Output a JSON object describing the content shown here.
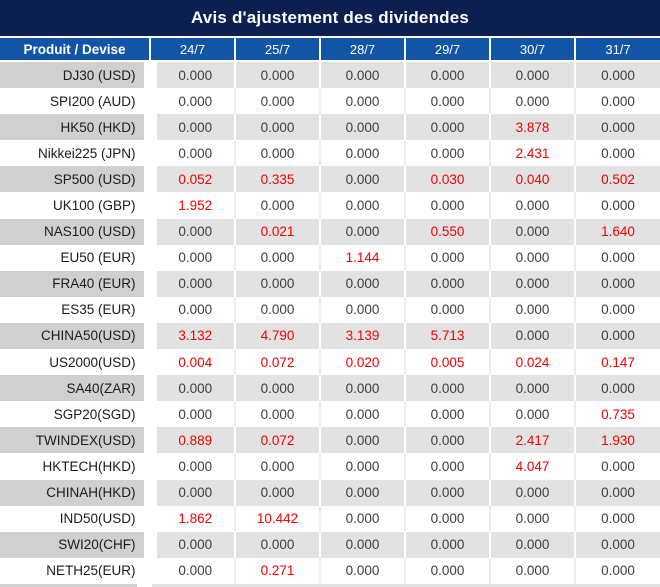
{
  "title": "Avis d'ajustement des dividendes",
  "colors": {
    "title_bar_bg": "#0c1f4f",
    "header_bg": "#1254a5",
    "header_text": "#ffffff",
    "row_gray_product": "#d0d0d0",
    "row_gray_value": "#e2e2e2",
    "row_white": "#ffffff",
    "value_text": "#3d3d3d",
    "red_value_text": "#f10000"
  },
  "table": {
    "product_header": "Produit / Devise",
    "date_headers": [
      "24/7",
      "25/7",
      "28/7",
      "29/7",
      "30/7",
      "31/7"
    ],
    "rows": [
      {
        "product": "DJ30 (USD)",
        "values": [
          "0.000",
          "0.000",
          "0.000",
          "0.000",
          "0.000",
          "0.000"
        ],
        "red": [
          false,
          false,
          false,
          false,
          false,
          false
        ]
      },
      {
        "product": "SPI200 (AUD)",
        "values": [
          "0.000",
          "0.000",
          "0.000",
          "0.000",
          "0.000",
          "0.000"
        ],
        "red": [
          false,
          false,
          false,
          false,
          false,
          false
        ]
      },
      {
        "product": "HK50 (HKD)",
        "values": [
          "0.000",
          "0.000",
          "0.000",
          "0.000",
          "3.878",
          "0.000"
        ],
        "red": [
          false,
          false,
          false,
          false,
          true,
          false
        ]
      },
      {
        "product": "Nikkei225 (JPN)",
        "values": [
          "0.000",
          "0.000",
          "0.000",
          "0.000",
          "2.431",
          "0.000"
        ],
        "red": [
          false,
          false,
          false,
          false,
          true,
          false
        ]
      },
      {
        "product": "SP500 (USD)",
        "values": [
          "0.052",
          "0.335",
          "0.000",
          "0.030",
          "0.040",
          "0.502"
        ],
        "red": [
          true,
          true,
          false,
          true,
          true,
          true
        ]
      },
      {
        "product": "UK100 (GBP)",
        "values": [
          "1.952",
          "0.000",
          "0.000",
          "0.000",
          "0.000",
          "0.000"
        ],
        "red": [
          true,
          false,
          false,
          false,
          false,
          false
        ]
      },
      {
        "product": "NAS100 (USD)",
        "values": [
          "0.000",
          "0.021",
          "0.000",
          "0.550",
          "0.000",
          "1.640"
        ],
        "red": [
          false,
          true,
          false,
          true,
          false,
          true
        ]
      },
      {
        "product": "EU50 (EUR)",
        "values": [
          "0.000",
          "0.000",
          "1.144",
          "0.000",
          "0.000",
          "0.000"
        ],
        "red": [
          false,
          false,
          true,
          false,
          false,
          false
        ]
      },
      {
        "product": "FRA40 (EUR)",
        "values": [
          "0.000",
          "0.000",
          "0.000",
          "0.000",
          "0.000",
          "0.000"
        ],
        "red": [
          false,
          false,
          false,
          false,
          false,
          false
        ]
      },
      {
        "product": "ES35 (EUR)",
        "values": [
          "0.000",
          "0.000",
          "0.000",
          "0.000",
          "0.000",
          "0.000"
        ],
        "red": [
          false,
          false,
          false,
          false,
          false,
          false
        ]
      },
      {
        "product": "CHINA50(USD)",
        "values": [
          "3.132",
          "4.790",
          "3.139",
          "5.713",
          "0.000",
          "0.000"
        ],
        "red": [
          true,
          true,
          true,
          true,
          false,
          false
        ]
      },
      {
        "product": "US2000(USD)",
        "values": [
          "0.004",
          "0.072",
          "0.020",
          "0.005",
          "0.024",
          "0.147"
        ],
        "red": [
          true,
          true,
          true,
          true,
          true,
          true
        ]
      },
      {
        "product": "SA40(ZAR)",
        "values": [
          "0.000",
          "0.000",
          "0.000",
          "0.000",
          "0.000",
          "0.000"
        ],
        "red": [
          false,
          false,
          false,
          false,
          false,
          false
        ]
      },
      {
        "product": "SGP20(SGD)",
        "values": [
          "0.000",
          "0.000",
          "0.000",
          "0.000",
          "0.000",
          "0.735"
        ],
        "red": [
          false,
          false,
          false,
          false,
          false,
          true
        ]
      },
      {
        "product": "TWINDEX(USD)",
        "values": [
          "0.889",
          "0.072",
          "0.000",
          "0.000",
          "2.417",
          "1.930"
        ],
        "red": [
          true,
          true,
          false,
          false,
          true,
          true
        ]
      },
      {
        "product": "HKTECH(HKD)",
        "values": [
          "0.000",
          "0.000",
          "0.000",
          "0.000",
          "4.047",
          "0.000"
        ],
        "red": [
          false,
          false,
          false,
          false,
          true,
          false
        ]
      },
      {
        "product": "CHINAH(HKD)",
        "values": [
          "0.000",
          "0.000",
          "0.000",
          "0.000",
          "0.000",
          "0.000"
        ],
        "red": [
          false,
          false,
          false,
          false,
          false,
          false
        ]
      },
      {
        "product": "IND50(USD)",
        "values": [
          "1.862",
          "10.442",
          "0.000",
          "0.000",
          "0.000",
          "0.000"
        ],
        "red": [
          true,
          true,
          false,
          false,
          false,
          false
        ]
      },
      {
        "product": "SWI20(CHF)",
        "values": [
          "0.000",
          "0.000",
          "0.000",
          "0.000",
          "0.000",
          "0.000"
        ],
        "red": [
          false,
          false,
          false,
          false,
          false,
          false
        ]
      },
      {
        "product": "NETH25(EUR)",
        "values": [
          "0.000",
          "0.271",
          "0.000",
          "0.000",
          "0.000",
          "0.000"
        ],
        "red": [
          false,
          true,
          false,
          false,
          false,
          false
        ]
      }
    ]
  }
}
